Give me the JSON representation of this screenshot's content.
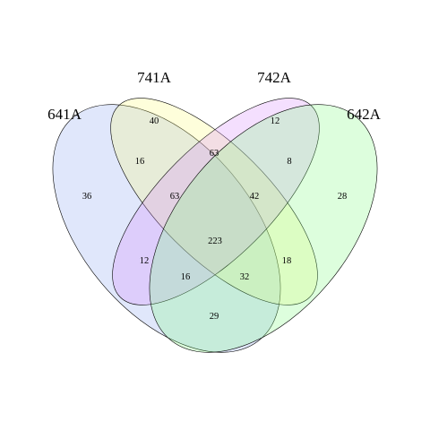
{
  "diagram": {
    "type": "venn-4-set",
    "sets": [
      {
        "key": "s641A",
        "label": "641A",
        "color": "#8fa8ef"
      },
      {
        "key": "s741A",
        "label": "741A",
        "color": "#fdfd7e"
      },
      {
        "key": "s742A",
        "label": "742A",
        "color": "#d98cfc"
      },
      {
        "key": "s642A",
        "label": "642A",
        "color": "#86fd86"
      }
    ],
    "regions": [
      {
        "key": "only_641A",
        "sets": [
          "641A"
        ],
        "count": "36"
      },
      {
        "key": "only_741A",
        "sets": [
          "741A"
        ],
        "count": "40"
      },
      {
        "key": "only_742A",
        "sets": [
          "742A"
        ],
        "count": "12"
      },
      {
        "key": "only_642A",
        "sets": [
          "642A"
        ],
        "count": "28"
      },
      {
        "key": "r641_741",
        "sets": [
          "641A",
          "741A"
        ],
        "count": "16"
      },
      {
        "key": "r741_742",
        "sets": [
          "741A",
          "742A"
        ],
        "count": "63"
      },
      {
        "key": "r742_642",
        "sets": [
          "742A",
          "642A"
        ],
        "count": "8"
      },
      {
        "key": "r641_741_742",
        "sets": [
          "641A",
          "741A",
          "742A"
        ],
        "count": "63"
      },
      {
        "key": "r741_742_642",
        "sets": [
          "741A",
          "742A",
          "642A"
        ],
        "count": "42"
      },
      {
        "key": "r_all",
        "sets": [
          "641A",
          "741A",
          "742A",
          "642A"
        ],
        "count": "223"
      },
      {
        "key": "r641_742",
        "sets": [
          "641A",
          "742A"
        ],
        "count": "12"
      },
      {
        "key": "r741_642",
        "sets": [
          "741A",
          "642A"
        ],
        "count": "18"
      },
      {
        "key": "r641_742_642",
        "sets": [
          "641A",
          "742A",
          "642A"
        ],
        "count": "16"
      },
      {
        "key": "r641_741_642",
        "sets": [
          "641A",
          "741A",
          "642A"
        ],
        "count": "32"
      },
      {
        "key": "r641_642",
        "sets": [
          "641A",
          "642A"
        ],
        "count": "29"
      }
    ]
  }
}
